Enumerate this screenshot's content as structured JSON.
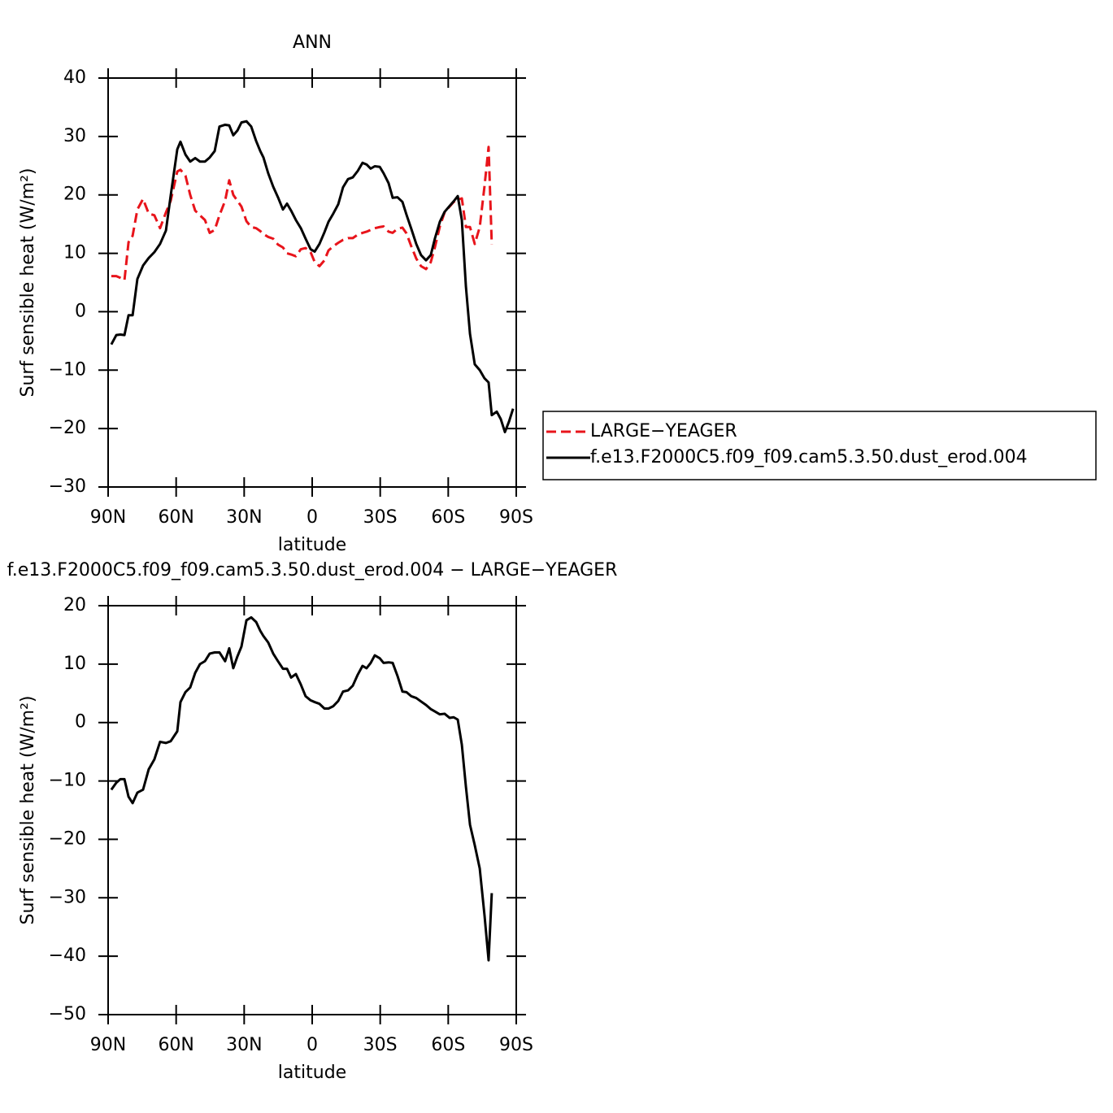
{
  "chart_data": [
    {
      "type": "line",
      "title": "ANN",
      "xlabel": "latitude",
      "ylabel": "Surf sensible heat (W/m²)",
      "xlim": [
        90,
        -90
      ],
      "xticks": [
        {
          "value": 90,
          "label": "90N"
        },
        {
          "value": 60,
          "label": "60N"
        },
        {
          "value": 30,
          "label": "30N"
        },
        0,
        {
          "value": -30,
          "label": "30S"
        },
        {
          "value": -60,
          "label": "60S"
        },
        {
          "value": -90,
          "label": "90S"
        }
      ],
      "ylim": [
        -30,
        40
      ],
      "yticks": [
        {
          "value": -30,
          "label": "−30"
        },
        {
          "value": -20,
          "label": "−20"
        },
        {
          "value": -10,
          "label": "−10"
        },
        0,
        10,
        20,
        30,
        40
      ],
      "legend": "right",
      "x": [
        88.6,
        86.4,
        84.6,
        82.8,
        81,
        79.2,
        77.1,
        74.6,
        72.1,
        69.6,
        67.1,
        64.5,
        62.4,
        59.5,
        58.1,
        55.9,
        53.8,
        51.6,
        49.5,
        47.3,
        45.2,
        43,
        40.9,
        38.4,
        36.6,
        34.8,
        33,
        31.2,
        29,
        26.9,
        24.7,
        22.9,
        21.5,
        19.4,
        17.2,
        15.1,
        12.9,
        11.1,
        9.3,
        7.2,
        5,
        2.9,
        0.7,
        -1.1,
        -3.2,
        -5.4,
        -7.2,
        -9.3,
        -11.5,
        -13.6,
        -15.8,
        -17.9,
        -20.1,
        -22.2,
        -24,
        -25.8,
        -27.6,
        -29.8,
        -31.5,
        -33.7,
        -35.5,
        -37.6,
        -39.8,
        -41.6,
        -43.7,
        -45.9,
        -48,
        -50.2,
        -52.3,
        -54.1,
        -56.3,
        -58.4,
        -60.6,
        -62.4,
        -64.2,
        -66,
        -67.8,
        -69.6,
        -71.7,
        -73.9,
        -76,
        -77.8,
        -79.2,
        -81.4,
        -83.2,
        -85,
        -86.8,
        -88.6
      ],
      "series": [
        {
          "name": "LARGE−YEAGER",
          "color": "#e8141b",
          "style": "dashed",
          "values": [
            6.1,
            6.1,
            5.8,
            5.4,
            11.9,
            13,
            17.5,
            19.3,
            16.8,
            16.5,
            14.3,
            17,
            19,
            24,
            24.3,
            23.3,
            20,
            17.3,
            16.5,
            15.7,
            13.5,
            14,
            16.5,
            19,
            22.5,
            20,
            19,
            18,
            15.5,
            14.5,
            14.3,
            13.8,
            13.3,
            12.8,
            12.5,
            11.5,
            11,
            10,
            9.8,
            9.5,
            10.7,
            10.9,
            10.2,
            8.5,
            7.8,
            8.8,
            10.5,
            11.2,
            11.8,
            12.3,
            12.6,
            12.6,
            13.2,
            13.5,
            13.7,
            14,
            14.3,
            14.5,
            14.6,
            13.7,
            13.5,
            14.2,
            14.4,
            13.4,
            11.2,
            9.1,
            7.8,
            7.3,
            8.5,
            11,
            14.6,
            17,
            18,
            18.8,
            19.2,
            19.4,
            14.5,
            14.5,
            11.6,
            14.5,
            21.5,
            28.2,
            11.5,
            null,
            null,
            null,
            null,
            null
          ]
        },
        {
          "name": "f.e13.F2000C5.f09_f09.cam5.3.50.dust_erod.004",
          "color": "#000000",
          "style": "solid",
          "values": [
            -5.6,
            -4,
            -3.9,
            -4,
            -0.6,
            -0.6,
            5.6,
            7.9,
            9.2,
            10.2,
            11.6,
            13.9,
            19.9,
            27.8,
            29.1,
            26.9,
            25.7,
            26.3,
            25.7,
            25.7,
            26.4,
            27.5,
            31.7,
            32,
            31.9,
            30.2,
            31,
            32.4,
            32.6,
            31.7,
            29.2,
            27.5,
            26.4,
            23.7,
            21.4,
            19.6,
            17.5,
            18.5,
            17.3,
            15.7,
            14.3,
            12.5,
            10.7,
            10.3,
            11.6,
            13.6,
            15.4,
            16.8,
            18.4,
            21.3,
            22.7,
            23,
            24.1,
            25.5,
            25.2,
            24.5,
            24.9,
            24.8,
            23.7,
            22,
            19.5,
            19.6,
            18.8,
            16.6,
            14.2,
            11.6,
            9.7,
            8.8,
            9.7,
            12.5,
            15.4,
            17.1,
            18.1,
            18.9,
            19.8,
            15.7,
            4.3,
            -3.8,
            -9,
            -10,
            -11.4,
            -12.1,
            -17.7,
            -17.1,
            -18.4,
            -20.6,
            -18.8,
            -16.6
          ]
        }
      ]
    },
    {
      "type": "line",
      "title": "f.e13.F2000C5.f09_f09.cam5.3.50.dust_erod.004 − LARGE−YEAGER",
      "xlabel": "latitude",
      "ylabel": "Surf sensible heat (W/m²)",
      "xlim": [
        90,
        -90
      ],
      "xticks": [
        {
          "value": 90,
          "label": "90N"
        },
        {
          "value": 60,
          "label": "60N"
        },
        {
          "value": 30,
          "label": "30N"
        },
        0,
        {
          "value": -30,
          "label": "30S"
        },
        {
          "value": -60,
          "label": "60S"
        },
        {
          "value": -90,
          "label": "90S"
        }
      ],
      "ylim": [
        -50,
        20
      ],
      "yticks": [
        {
          "value": -50,
          "label": "−50"
        },
        {
          "value": -40,
          "label": "−40"
        },
        {
          "value": -30,
          "label": "−30"
        },
        {
          "value": -20,
          "label": "−20"
        },
        {
          "value": -10,
          "label": "−10"
        },
        0,
        10,
        20
      ],
      "x": [
        88.6,
        86.4,
        84.6,
        82.8,
        81,
        79.2,
        77.1,
        74.6,
        72.1,
        69.6,
        67.1,
        64.5,
        62.4,
        59.5,
        58.1,
        55.9,
        53.8,
        51.6,
        49.5,
        47.3,
        45.2,
        43,
        40.9,
        38.4,
        36.6,
        34.8,
        33,
        31.2,
        29,
        26.9,
        24.7,
        22.9,
        21.5,
        19.4,
        17.2,
        15.1,
        12.9,
        11.1,
        9.3,
        7.2,
        5,
        2.9,
        0.7,
        -1.1,
        -3.2,
        -5.4,
        -7.2,
        -9.3,
        -11.5,
        -13.6,
        -15.8,
        -17.9,
        -20.1,
        -22.2,
        -24,
        -25.8,
        -27.6,
        -29.8,
        -31.5,
        -33.7,
        -35.5,
        -37.6,
        -39.8,
        -41.6,
        -43.7,
        -45.9,
        -48,
        -50.2,
        -52.3,
        -54.1,
        -56.3,
        -58.4,
        -60.6,
        -62.4,
        -64.2,
        -66,
        -67.8,
        -69.6,
        -71.7,
        -73.9,
        -76,
        -77.8,
        -79.2,
        -81.4,
        -83.2,
        -85,
        -86.8,
        -88.6
      ],
      "color": "#000000",
      "values": [
        -11.5,
        -10.3,
        -9.7,
        -9.7,
        -12.7,
        -13.8,
        -12,
        -11.5,
        -8,
        -6.3,
        -3.3,
        -3.5,
        -3.2,
        -1.5,
        3.5,
        5.2,
        6,
        8.5,
        10,
        10.5,
        11.8,
        12,
        12,
        10.5,
        12.7,
        9.3,
        11.3,
        13,
        17.5,
        18,
        17.2,
        15.7,
        14.8,
        13.7,
        11.8,
        10.5,
        9.2,
        9.2,
        7.7,
        8.3,
        6.5,
        4.5,
        3.8,
        3.5,
        3.2,
        2.4,
        2.4,
        2.8,
        3.7,
        5.3,
        5.5,
        6.3,
        8.2,
        9.7,
        9.3,
        10.2,
        11.5,
        11,
        10.2,
        10.3,
        10.2,
        8,
        5.3,
        5.2,
        4.5,
        4.2,
        3.6,
        3,
        2.3,
        1.9,
        1.4,
        1.5,
        0.8,
        0.9,
        0.5,
        -3.8,
        -11,
        -17.5,
        -21,
        -25,
        -33,
        -40.7,
        -29.2,
        null,
        null,
        null,
        null,
        null
      ]
    }
  ]
}
